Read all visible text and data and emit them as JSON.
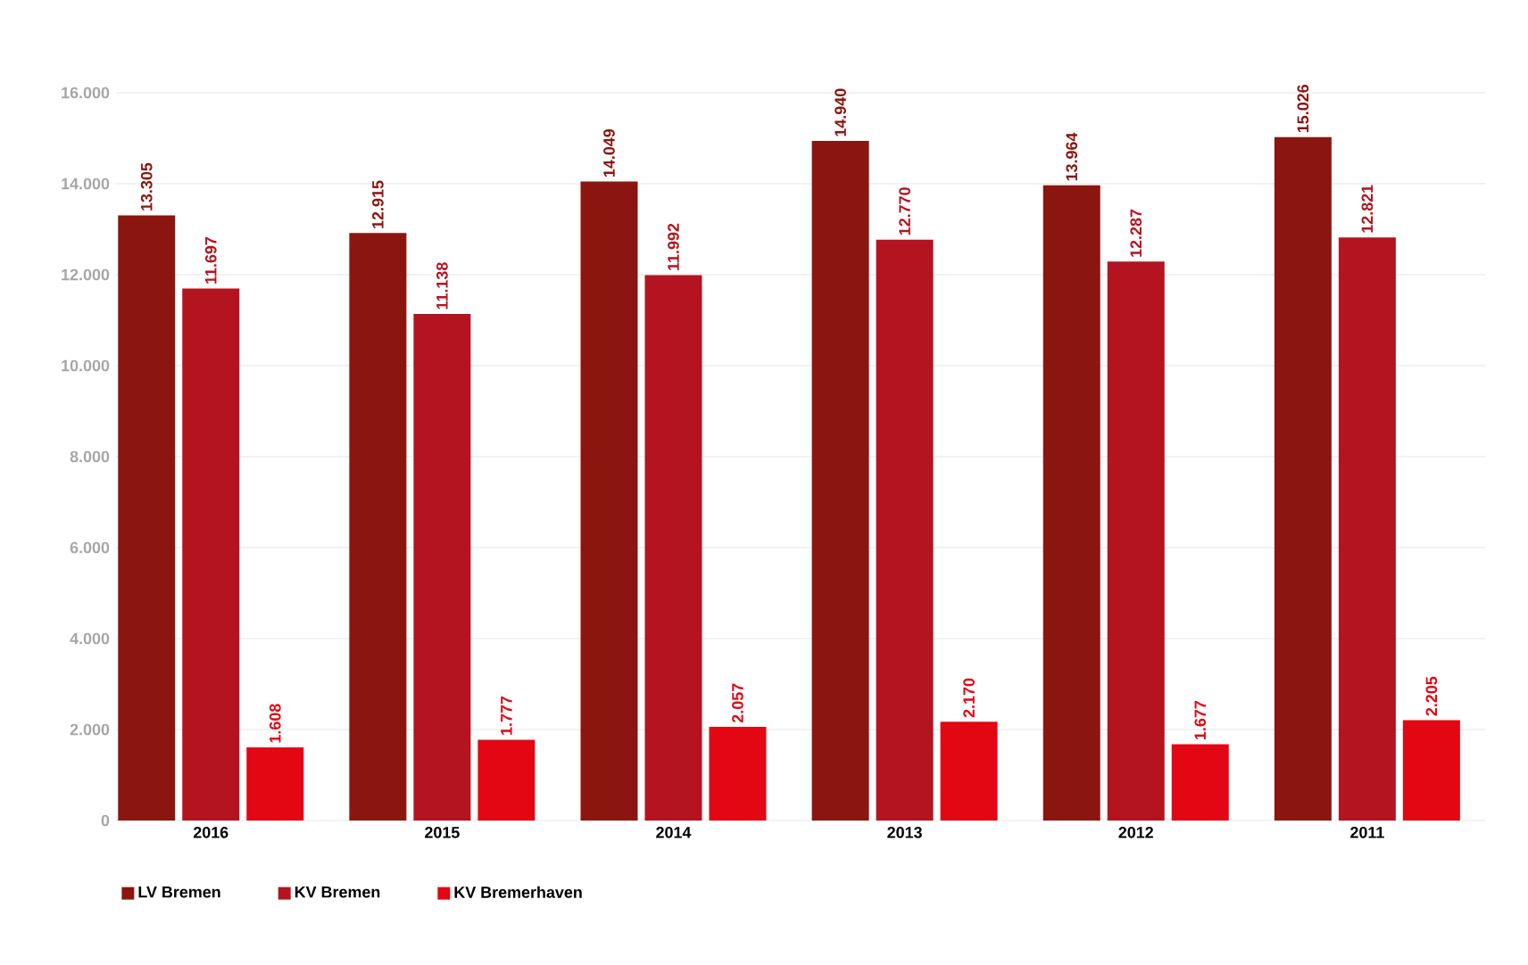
{
  "chart_data": {
    "type": "bar",
    "categories": [
      "2016",
      "2015",
      "2014",
      "2013",
      "2012",
      "2011"
    ],
    "series": [
      {
        "name": "LV Bremen",
        "color": "#8b1610",
        "values": [
          13305,
          12915,
          14049,
          14940,
          13964,
          15026
        ],
        "value_labels": [
          "13.305",
          "12.915",
          "14.049",
          "14.940",
          "13.964",
          "15.026"
        ]
      },
      {
        "name": "KV Bremen",
        "color": "#b3141f",
        "values": [
          11697,
          11138,
          11992,
          12770,
          12287,
          12821
        ],
        "value_labels": [
          "11.697",
          "11.138",
          "11.992",
          "12.770",
          "12.287",
          "12.821"
        ]
      },
      {
        "name": "KV Bremerhaven",
        "color": "#e30613",
        "values": [
          1608,
          1777,
          2057,
          2170,
          1677,
          2205
        ],
        "value_labels": [
          "1.608",
          "1.777",
          "2.057",
          "2.170",
          "1.677",
          "2.205"
        ]
      }
    ],
    "ylim": [
      0,
      16000
    ],
    "yticks": [
      {
        "value": 0,
        "label": "0"
      },
      {
        "value": 2000,
        "label": "2.000"
      },
      {
        "value": 4000,
        "label": "4.000"
      },
      {
        "value": 6000,
        "label": "6.000"
      },
      {
        "value": 8000,
        "label": "8.000"
      },
      {
        "value": 10000,
        "label": "10.000"
      },
      {
        "value": 12000,
        "label": "12.000"
      },
      {
        "value": 14000,
        "label": "14.000"
      },
      {
        "value": 16000,
        "label": "16.000"
      }
    ],
    "grid": "y",
    "legend": "bottom left"
  }
}
